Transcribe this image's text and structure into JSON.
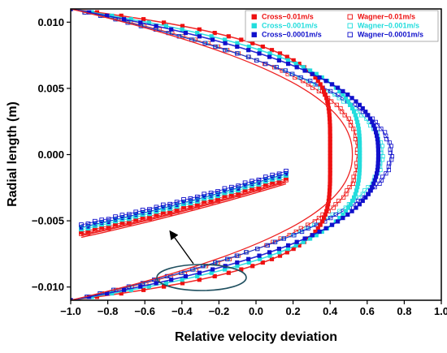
{
  "chart_data": {
    "type": "scatter",
    "title": "",
    "xlabel": "Relative velocity deviation",
    "ylabel": "Radial length (m)",
    "xlim": [
      -1.0,
      1.0
    ],
    "ylim": [
      -0.011,
      0.011
    ],
    "x_ticks": [
      "−1.0",
      "−0.8",
      "−0.6",
      "−0.4",
      "−0.2",
      "0.0",
      "0.2",
      "0.4",
      "0.6",
      "0.8",
      "1.0"
    ],
    "y_ticks": [
      "−0.010",
      "−0.005",
      "0.000",
      "0.005",
      "0.010"
    ],
    "legend_position": "top-right",
    "series": [
      {
        "name": "Cross−0.01m/s",
        "color": "#ee1111",
        "marker": "filled-square",
        "peak": 0.4
      },
      {
        "name": "Cross−0.001m/s",
        "color": "#22dddd",
        "marker": "filled-square",
        "peak": 0.56
      },
      {
        "name": "Cross−0.0001m/s",
        "color": "#1111cc",
        "marker": "filled-square",
        "peak": 0.66
      },
      {
        "name": "Wagner−0.01m/s",
        "color": "#ee1111",
        "marker": "open-square",
        "peak": 0.55
      },
      {
        "name": "Wagner−0.001m/s",
        "color": "#22dddd",
        "marker": "open-square",
        "peak": 0.68
      },
      {
        "name": "Wagner−0.0001m/s",
        "color": "#1111cc",
        "marker": "open-square",
        "peak": 0.73
      }
    ],
    "annotation": {
      "type": "zoom-inset",
      "note": "magnified lower wall region"
    }
  },
  "colors": {
    "fit_line": "#ee2222",
    "ellipse": "#1f4f5f",
    "arrow": "#000000"
  }
}
